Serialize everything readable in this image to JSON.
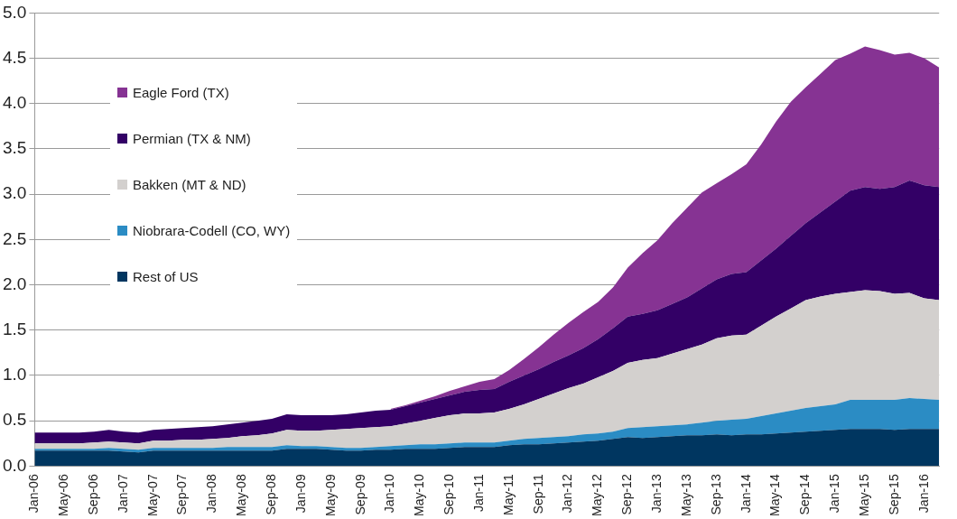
{
  "chart_data": {
    "type": "area",
    "stacked": true,
    "legend": "top left",
    "grid": "y",
    "categories": [
      "Jan-06",
      null,
      "May-06",
      null,
      "Sep-06",
      null,
      "Jan-07",
      null,
      "May-07",
      null,
      "Sep-07",
      null,
      "Jan-08",
      null,
      "May-08",
      null,
      "Sep-08",
      null,
      "Jan-09",
      null,
      "May-09",
      null,
      "Sep-09",
      null,
      "Jan-10",
      null,
      "May-10",
      null,
      "Sep-10",
      null,
      "Jan-11",
      null,
      "May-11",
      null,
      "Sep-11",
      null,
      "Jan-12",
      null,
      "May-12",
      null,
      "Sep-12",
      null,
      "Jan-13",
      null,
      "May-13",
      null,
      "Sep-13",
      null,
      "Jan-14",
      null,
      "May-14",
      null,
      "Sep-14",
      null,
      "Jan-15",
      null,
      "May-15",
      null,
      "Sep-15",
      null,
      "Jan-16",
      null
    ],
    "ylim": [
      0,
      5
    ],
    "yticks": [
      {
        "value": 0,
        "label": "0.0"
      },
      {
        "value": 0.5,
        "label": "0.5"
      },
      {
        "value": 1,
        "label": "1.0"
      },
      {
        "value": 1.5,
        "label": "1.5"
      },
      {
        "value": 2,
        "label": "2.0"
      },
      {
        "value": 2.5,
        "label": "2.5"
      },
      {
        "value": 3,
        "label": "3.0"
      },
      {
        "value": 3.5,
        "label": "3.5"
      },
      {
        "value": 4,
        "label": "4.0"
      },
      {
        "value": 4.5,
        "label": "4.5"
      },
      {
        "value": 5,
        "label": "5.0"
      }
    ],
    "series": [
      {
        "name": "Rest of US",
        "color": "#003660",
        "values": [
          0.17,
          0.17,
          0.17,
          0.17,
          0.17,
          0.17,
          0.16,
          0.15,
          0.17,
          0.17,
          0.17,
          0.17,
          0.17,
          0.17,
          0.17,
          0.17,
          0.17,
          0.19,
          0.19,
          0.19,
          0.18,
          0.17,
          0.17,
          0.18,
          0.18,
          0.19,
          0.19,
          0.19,
          0.2,
          0.21,
          0.21,
          0.21,
          0.23,
          0.24,
          0.24,
          0.25,
          0.26,
          0.27,
          0.28,
          0.3,
          0.32,
          0.31,
          0.32,
          0.33,
          0.34,
          0.34,
          0.35,
          0.34,
          0.35,
          0.35,
          0.36,
          0.37,
          0.38,
          0.39,
          0.4,
          0.41,
          0.41,
          0.41,
          0.4,
          0.41,
          0.41,
          0.41
        ]
      },
      {
        "name": "Niobrara-Codell (CO, WY)",
        "color": "#2b8cc4",
        "values": [
          0.02,
          0.02,
          0.02,
          0.02,
          0.02,
          0.03,
          0.03,
          0.03,
          0.03,
          0.03,
          0.03,
          0.03,
          0.03,
          0.04,
          0.04,
          0.04,
          0.04,
          0.04,
          0.03,
          0.03,
          0.03,
          0.03,
          0.03,
          0.03,
          0.04,
          0.04,
          0.05,
          0.05,
          0.05,
          0.05,
          0.05,
          0.05,
          0.05,
          0.06,
          0.07,
          0.07,
          0.07,
          0.08,
          0.08,
          0.08,
          0.1,
          0.12,
          0.12,
          0.12,
          0.12,
          0.14,
          0.15,
          0.17,
          0.17,
          0.2,
          0.22,
          0.24,
          0.26,
          0.27,
          0.28,
          0.32,
          0.32,
          0.32,
          0.33,
          0.34,
          0.33,
          0.32
        ]
      },
      {
        "name": "Bakken (MT & ND)",
        "color": "#d3d0ce",
        "values": [
          0.06,
          0.06,
          0.06,
          0.06,
          0.07,
          0.07,
          0.07,
          0.07,
          0.08,
          0.08,
          0.09,
          0.09,
          0.1,
          0.1,
          0.12,
          0.13,
          0.15,
          0.17,
          0.17,
          0.17,
          0.19,
          0.21,
          0.22,
          0.22,
          0.22,
          0.24,
          0.26,
          0.29,
          0.31,
          0.32,
          0.32,
          0.33,
          0.35,
          0.38,
          0.43,
          0.48,
          0.53,
          0.56,
          0.62,
          0.67,
          0.72,
          0.74,
          0.75,
          0.79,
          0.83,
          0.86,
          0.91,
          0.93,
          0.93,
          1.0,
          1.07,
          1.13,
          1.19,
          1.21,
          1.22,
          1.19,
          1.21,
          1.2,
          1.17,
          1.16,
          1.11,
          1.1
        ]
      },
      {
        "name": "Permian (TX & NM)",
        "color": "#330066",
        "values": [
          0.12,
          0.12,
          0.12,
          0.12,
          0.12,
          0.13,
          0.12,
          0.12,
          0.12,
          0.13,
          0.13,
          0.14,
          0.14,
          0.15,
          0.15,
          0.16,
          0.16,
          0.17,
          0.17,
          0.17,
          0.16,
          0.16,
          0.17,
          0.18,
          0.18,
          0.19,
          0.2,
          0.21,
          0.22,
          0.24,
          0.26,
          0.26,
          0.3,
          0.32,
          0.33,
          0.35,
          0.36,
          0.39,
          0.42,
          0.47,
          0.51,
          0.51,
          0.53,
          0.55,
          0.57,
          0.62,
          0.65,
          0.68,
          0.69,
          0.72,
          0.75,
          0.8,
          0.85,
          0.93,
          1.02,
          1.12,
          1.14,
          1.13,
          1.18,
          1.24,
          1.25,
          1.25
        ]
      },
      {
        "name": "Eagle Ford (TX)",
        "color": "#863393",
        "values": [
          null,
          null,
          null,
          null,
          null,
          null,
          null,
          null,
          null,
          null,
          null,
          null,
          null,
          null,
          null,
          null,
          null,
          null,
          null,
          null,
          null,
          null,
          null,
          null,
          0.01,
          0.01,
          0.02,
          0.03,
          0.05,
          0.06,
          0.09,
          0.11,
          0.13,
          0.18,
          0.24,
          0.3,
          0.36,
          0.4,
          0.41,
          0.45,
          0.54,
          0.67,
          0.77,
          0.89,
          0.99,
          1.06,
          1.06,
          1.1,
          1.19,
          1.28,
          1.4,
          1.48,
          1.5,
          1.53,
          1.56,
          1.51,
          1.55,
          1.53,
          1.46,
          1.41,
          1.4,
          1.32
        ]
      }
    ]
  }
}
